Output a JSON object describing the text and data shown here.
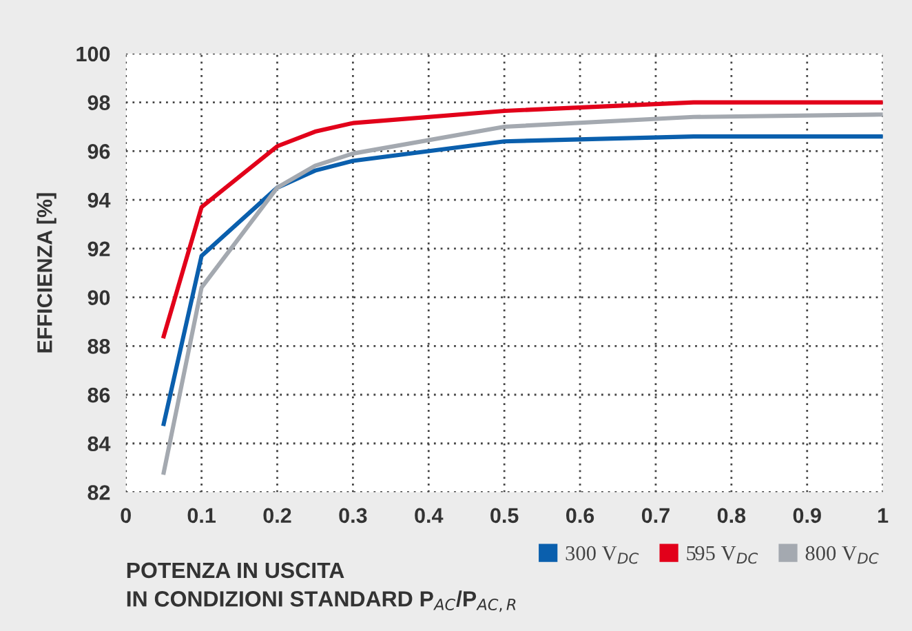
{
  "chart_data": {
    "type": "line",
    "ylabel": "EFFICIENZA [%]",
    "xlabel": "POTENZA IN USCITA\nIN CONDIZIONI STANDARD P$_{AC}$/P$_{AC,R}$",
    "xlim": [
      0,
      1
    ],
    "xticks": [
      0,
      0.1,
      0.2,
      0.3,
      0.4,
      0.5,
      0.6,
      0.7,
      0.8,
      0.9,
      1
    ],
    "ylim": [
      82,
      100
    ],
    "yticks": [
      82,
      84,
      86,
      88,
      90,
      92,
      94,
      96,
      98,
      100
    ],
    "grid": true,
    "legend": "bottom right",
    "line_style": "solid",
    "series": [
      {
        "name": "300 V$_{DC}$",
        "color": "#0a5fad",
        "x": [
          0.05,
          0.1,
          0.2,
          0.25,
          0.3,
          0.5,
          0.75,
          1
        ],
        "values": [
          84.8,
          91.7,
          94.5,
          95.2,
          95.6,
          96.4,
          96.6,
          96.6
        ]
      },
      {
        "name": "595 V$_{DC}$",
        "color": "#e2001a",
        "x": [
          0.05,
          0.1,
          0.2,
          0.25,
          0.3,
          0.5,
          0.75,
          1
        ],
        "values": [
          88.4,
          93.7,
          96.2,
          96.8,
          97.15,
          97.65,
          98.0,
          98.0
        ]
      },
      {
        "name": "800 V$_{DC}$",
        "color": "#a4a9b0",
        "x": [
          0.05,
          0.1,
          0.2,
          0.25,
          0.3,
          0.5,
          0.75,
          1
        ],
        "values": [
          82.8,
          90.4,
          94.5,
          95.4,
          95.9,
          97.0,
          97.4,
          97.5
        ]
      }
    ]
  }
}
